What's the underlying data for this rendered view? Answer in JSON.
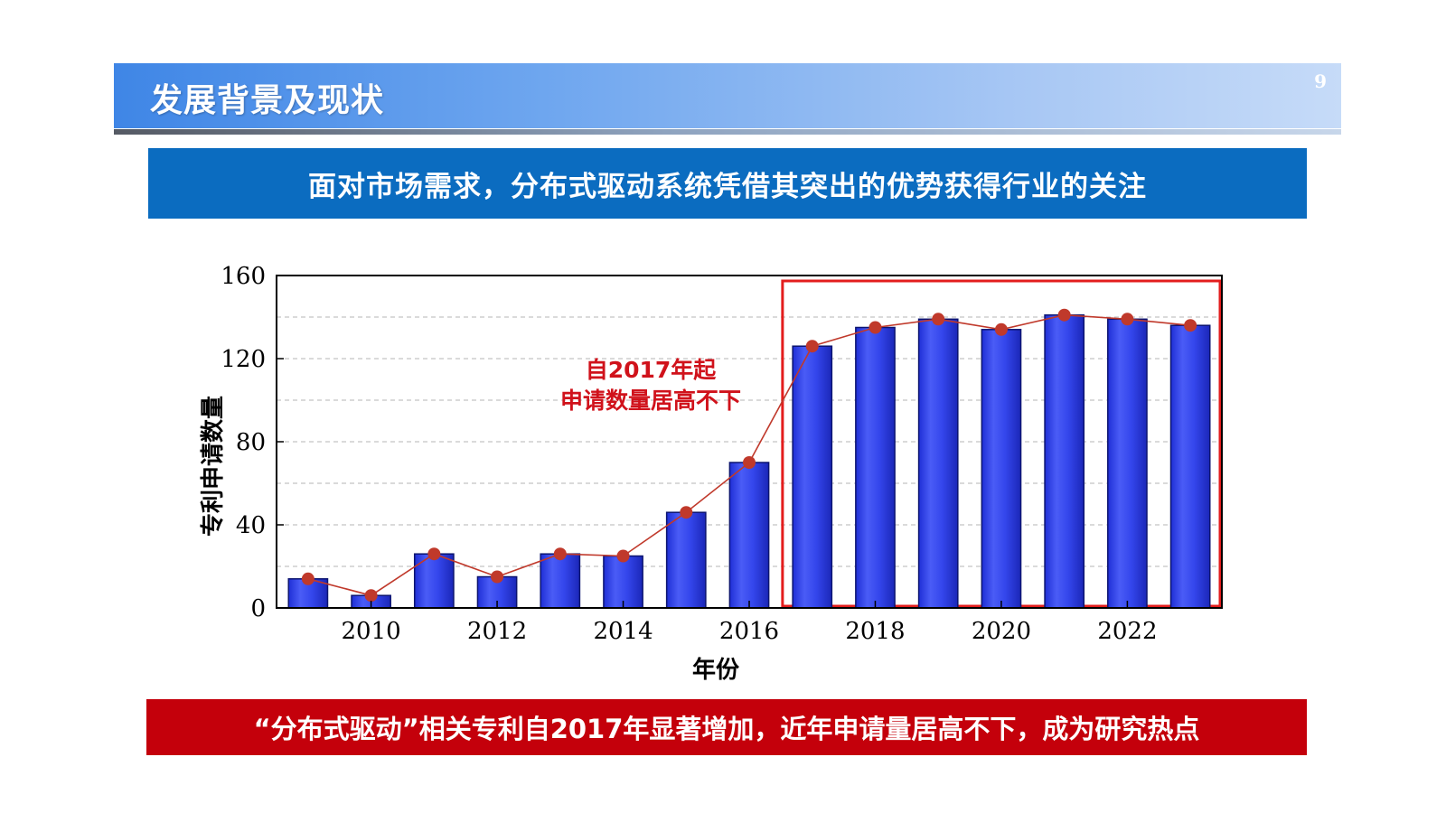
{
  "header": {
    "title": "发展背景及现状",
    "page_number": "9"
  },
  "banner": {
    "text": "面对市场需求，分布式驱动系统凭借其突出的优势获得行业的关注"
  },
  "footer": {
    "text": "“分布式驱动”相关专利自2017年显著增加，近年申请量居高不下，成为研究热点"
  },
  "chart_data": {
    "type": "bar",
    "x": [
      2009,
      2010,
      2011,
      2012,
      2013,
      2014,
      2015,
      2016,
      2017,
      2018,
      2019,
      2020,
      2021,
      2022,
      2023
    ],
    "values": [
      14,
      6,
      26,
      15,
      26,
      25,
      46,
      70,
      126,
      135,
      139,
      134,
      141,
      139,
      136
    ],
    "overlay_line": true,
    "xticks": [
      "2010",
      "2012",
      "2014",
      "2016",
      "2018",
      "2020",
      "2022"
    ],
    "yticks": [
      "0",
      "40",
      "80",
      "120",
      "160"
    ],
    "xlabel": "年份",
    "ylabel": "专利申请数量",
    "ylim": [
      0,
      160
    ],
    "grid": "horizontal dashed",
    "highlight_region": [
      2017,
      2023
    ],
    "annotation": [
      "自2017年起",
      "申请数量居高不下"
    ],
    "colors": {
      "bar": "#2d3fe8",
      "line": "#c0392b",
      "highlight": "#e31d1d",
      "annotation": "#d0121b"
    }
  }
}
